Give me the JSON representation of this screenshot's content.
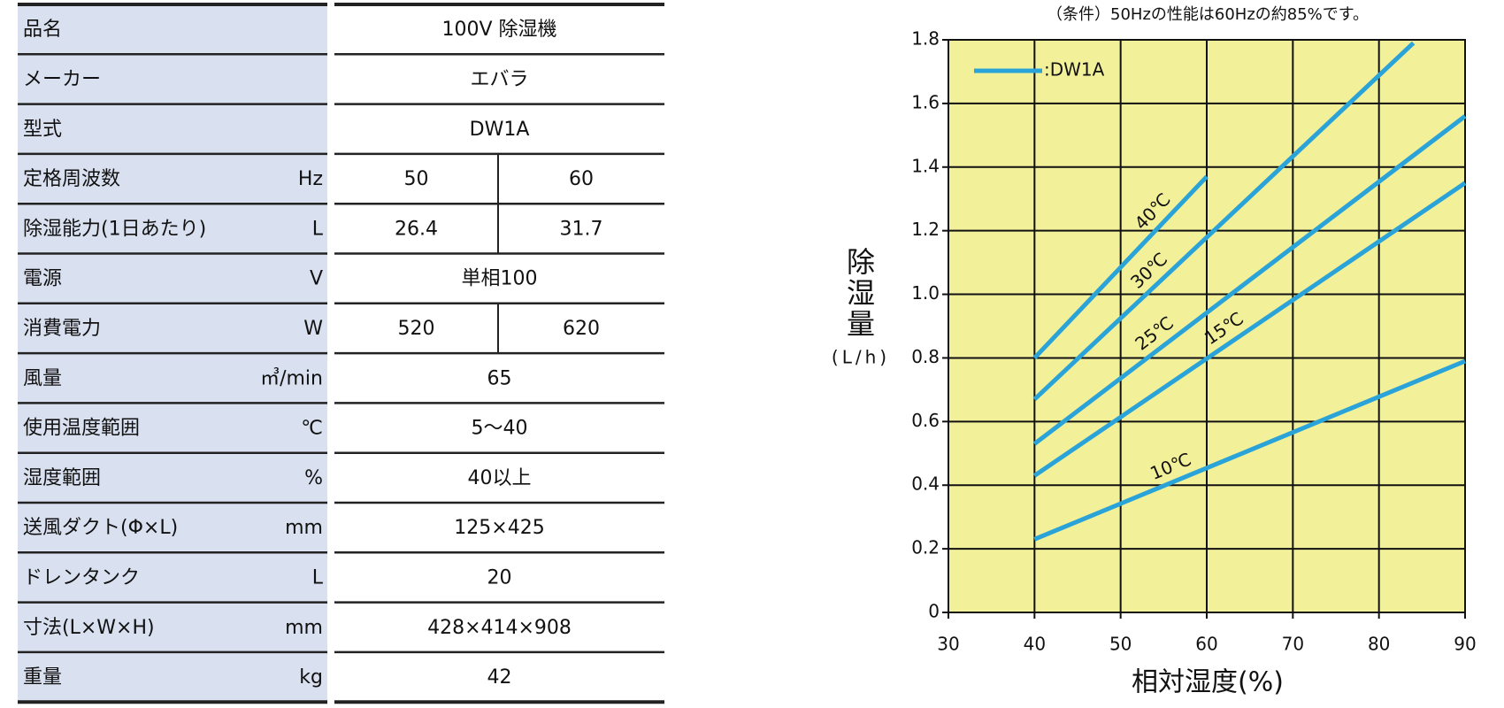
{
  "table": {
    "rows": [
      {
        "label": "品名",
        "values": [
          "100V 除湿機"
        ]
      },
      {
        "label": "メーカー",
        "values": [
          "エバラ"
        ]
      },
      {
        "label": "型式",
        "values": [
          "DW1A"
        ]
      },
      {
        "label": "定格周波数",
        "unit": "Hz",
        "values": [
          "50",
          "60"
        ]
      },
      {
        "label": "除湿能力(1日あたり)",
        "unit": "L",
        "values": [
          "26.4",
          "31.7"
        ]
      },
      {
        "label": "電源",
        "unit": "V",
        "values": [
          "単相100"
        ]
      },
      {
        "label": "消費電力",
        "unit": "W",
        "values": [
          "520",
          "620"
        ]
      },
      {
        "label": "風量",
        "unit": "㎥/min",
        "values": [
          "65"
        ]
      },
      {
        "label": "使用温度範囲",
        "unit": "℃",
        "values": [
          "5〜40"
        ]
      },
      {
        "label": "湿度範囲",
        "unit": "%",
        "values": [
          "40以上"
        ]
      },
      {
        "label": "送風ダクト(Φ×L)",
        "unit": "mm",
        "values": [
          "125×425"
        ]
      },
      {
        "label": "ドレンタンク",
        "unit": "L",
        "values": [
          "20"
        ]
      },
      {
        "label": "寸法(L×W×H)",
        "unit": "mm",
        "values": [
          "428×414×908"
        ]
      },
      {
        "label": "重量",
        "unit": "kg",
        "values": [
          "42"
        ]
      }
    ]
  },
  "chart_data": {
    "type": "line",
    "title": "（条件）50Hzの性能は60Hzの約85%です。",
    "y_label": "除湿量",
    "y_unit": "(L/h)",
    "x_label": "相対湿度(%)",
    "legend_label": ":DW1A",
    "grid": true,
    "background": "#f3f09a",
    "xlim": [
      30,
      90
    ],
    "xticks": [
      30,
      40,
      50,
      60,
      70,
      80,
      90
    ],
    "ylim": [
      0,
      1.8
    ],
    "yticks": [
      0,
      0.2,
      0.4,
      0.6,
      0.8,
      {
        "value": 1,
        "label": "1.0"
      },
      1.2,
      1.4,
      1.6,
      1.8
    ],
    "series": [
      {
        "name": "40℃",
        "color": "#2aa3d8",
        "x": [
          40,
          60
        ],
        "values": [
          0.8,
          1.37
        ]
      },
      {
        "name": "30℃",
        "color": "#2aa3d8",
        "x": [
          40,
          84
        ],
        "values": [
          0.67,
          1.79
        ]
      },
      {
        "name": "25℃",
        "color": "#2aa3d8",
        "x": [
          40,
          90
        ],
        "values": [
          0.53,
          1.56
        ]
      },
      {
        "name": "15℃",
        "color": "#2aa3d8",
        "x": [
          40,
          90
        ],
        "values": [
          0.43,
          1.35
        ]
      },
      {
        "name": "10℃",
        "color": "#2aa3d8",
        "x": [
          40,
          90
        ],
        "values": [
          0.23,
          0.79
        ]
      }
    ]
  }
}
